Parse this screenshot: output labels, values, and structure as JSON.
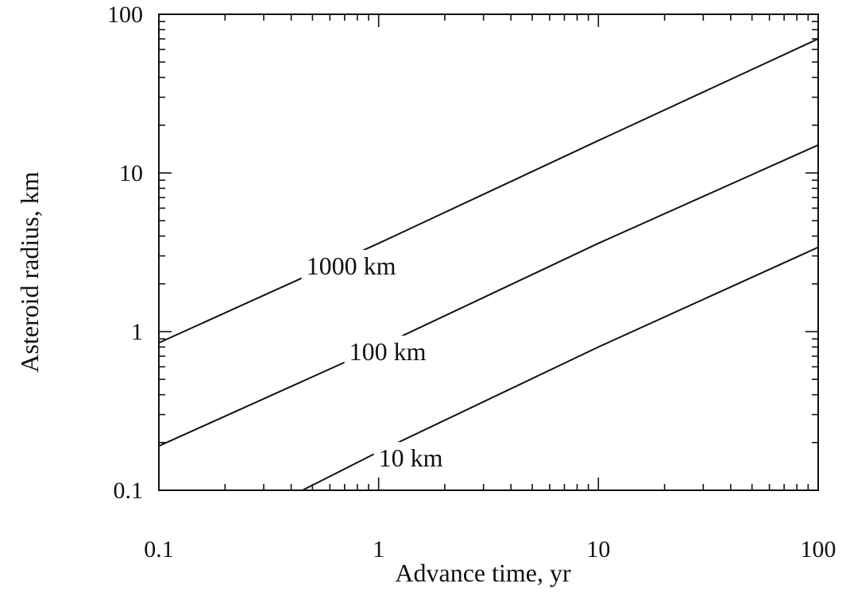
{
  "chart_data": {
    "type": "line",
    "title": "",
    "xlabel": "Advance time, yr",
    "ylabel": "Asteroid radius, km",
    "xscale": "log",
    "yscale": "log",
    "xlim": [
      0.1,
      100
    ],
    "ylim": [
      0.1,
      100
    ],
    "x_ticks": [
      0.1,
      1,
      10,
      100
    ],
    "x_tick_labels": [
      "0.1",
      "1",
      "10",
      "100"
    ],
    "y_ticks": [
      0.1,
      1,
      10,
      100
    ],
    "y_tick_labels": [
      "0.1",
      "1",
      "10",
      "100"
    ],
    "grid": false,
    "legend": "none",
    "line_color": "#111111",
    "series": [
      {
        "name": "1000 km",
        "label_at": [
          0.75,
          2.6
        ],
        "points": [
          [
            0.1,
            0.85
          ],
          [
            1,
            3.6
          ],
          [
            10,
            16
          ],
          [
            100,
            70
          ]
        ]
      },
      {
        "name": "100 km",
        "label_at": [
          1.1,
          0.75
        ],
        "points": [
          [
            0.1,
            0.19
          ],
          [
            1,
            0.8
          ],
          [
            10,
            3.6
          ],
          [
            100,
            15
          ]
        ]
      },
      {
        "name": "10 km",
        "label_at": [
          1.4,
          0.16
        ],
        "points": [
          [
            0.45,
            0.1
          ],
          [
            1,
            0.175
          ],
          [
            10,
            0.8
          ],
          [
            100,
            3.4
          ]
        ]
      }
    ]
  }
}
